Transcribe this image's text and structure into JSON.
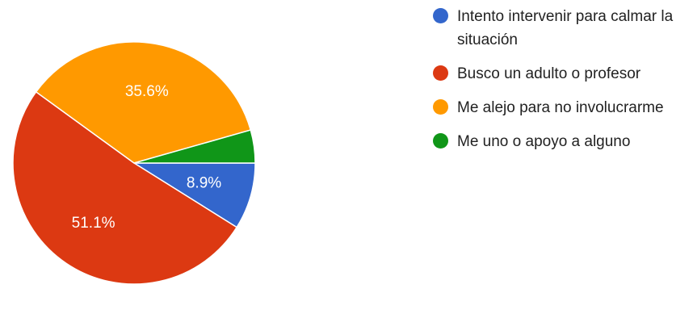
{
  "chart_data": {
    "type": "pie",
    "categories": [
      "Intento intervenir para calmar la situación",
      "Busco un adulto o profesor",
      "Me alejo para no involucrarme",
      "Me uno o apoyo a alguno"
    ],
    "values": [
      8.9,
      51.1,
      35.6,
      4.4
    ],
    "data_labels": [
      "8.9%",
      "51.1%",
      "35.6%",
      ""
    ],
    "colors": [
      "#3366cc",
      "#dc3912",
      "#ff9900",
      "#109618"
    ],
    "legend_position": "right"
  }
}
